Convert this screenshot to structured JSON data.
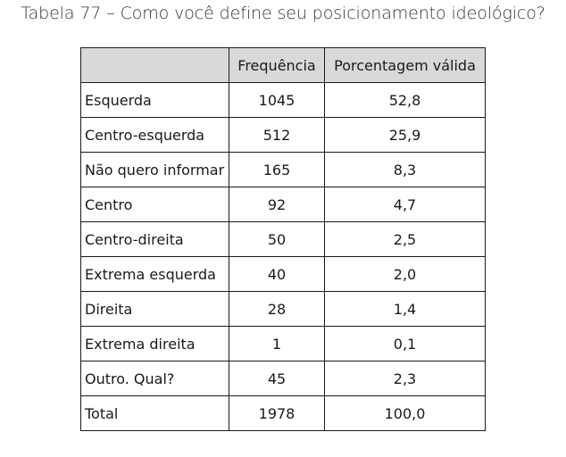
{
  "caption": "Tabela 77 – Como você define seu posicionamento ideológico?",
  "table": {
    "headers": [
      "",
      "Frequência",
      "Porcentagem válida"
    ],
    "rows": [
      {
        "category": "Esquerda",
        "frequency": "1045",
        "percent": "52,8"
      },
      {
        "category": "Centro-esquerda",
        "frequency": "512",
        "percent": "25,9"
      },
      {
        "category": "Não quero informar",
        "frequency": "165",
        "percent": "8,3"
      },
      {
        "category": "Centro",
        "frequency": "92",
        "percent": "4,7"
      },
      {
        "category": "Centro-direita",
        "frequency": "50",
        "percent": "2,5"
      },
      {
        "category": "Extrema esquerda",
        "frequency": "40",
        "percent": "2,0"
      },
      {
        "category": "Direita",
        "frequency": "28",
        "percent": "1,4"
      },
      {
        "category": "Extrema direita",
        "frequency": "1",
        "percent": "0,1"
      },
      {
        "category": "Outro. Qual?",
        "frequency": "45",
        "percent": "2,3"
      },
      {
        "category": "Total",
        "frequency": "1978",
        "percent": "100,0"
      }
    ]
  },
  "colors": {
    "header_background": "#d9d9d9",
    "border": "#1a1a1a"
  }
}
